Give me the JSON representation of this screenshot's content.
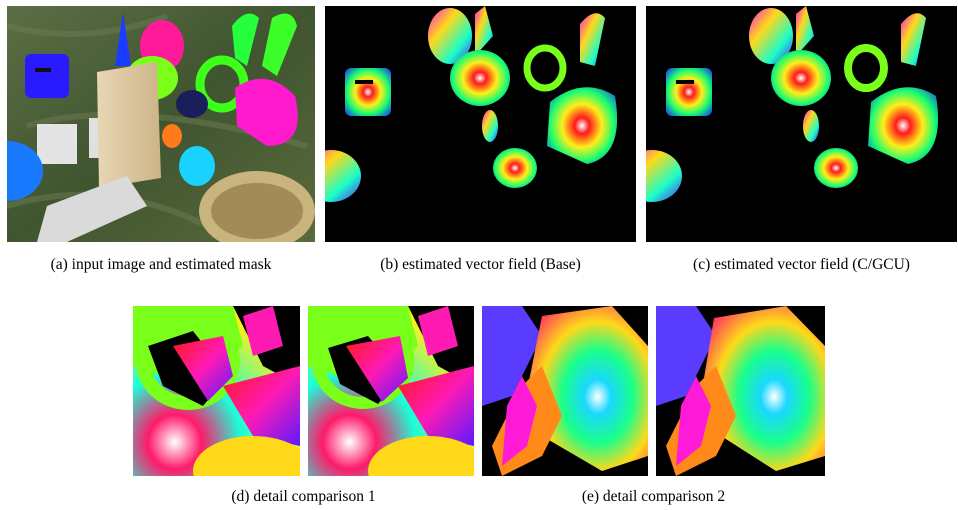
{
  "figure": {
    "panels": [
      {
        "key": "a",
        "caption": "(a)  input image and estimated mask"
      },
      {
        "key": "b",
        "caption": "(b)  estimated vector field (Base)"
      },
      {
        "key": "c",
        "caption": "(c)  estimated vector field (C/GCU)"
      },
      {
        "key": "d",
        "caption": "(d)  detail comparison 1"
      },
      {
        "key": "e",
        "caption": "(e)  detail comparison 2"
      }
    ]
  },
  "colors": {
    "background": "#ffffff",
    "vector_field_background": "#000000",
    "scene_background": "#4a5e36"
  }
}
